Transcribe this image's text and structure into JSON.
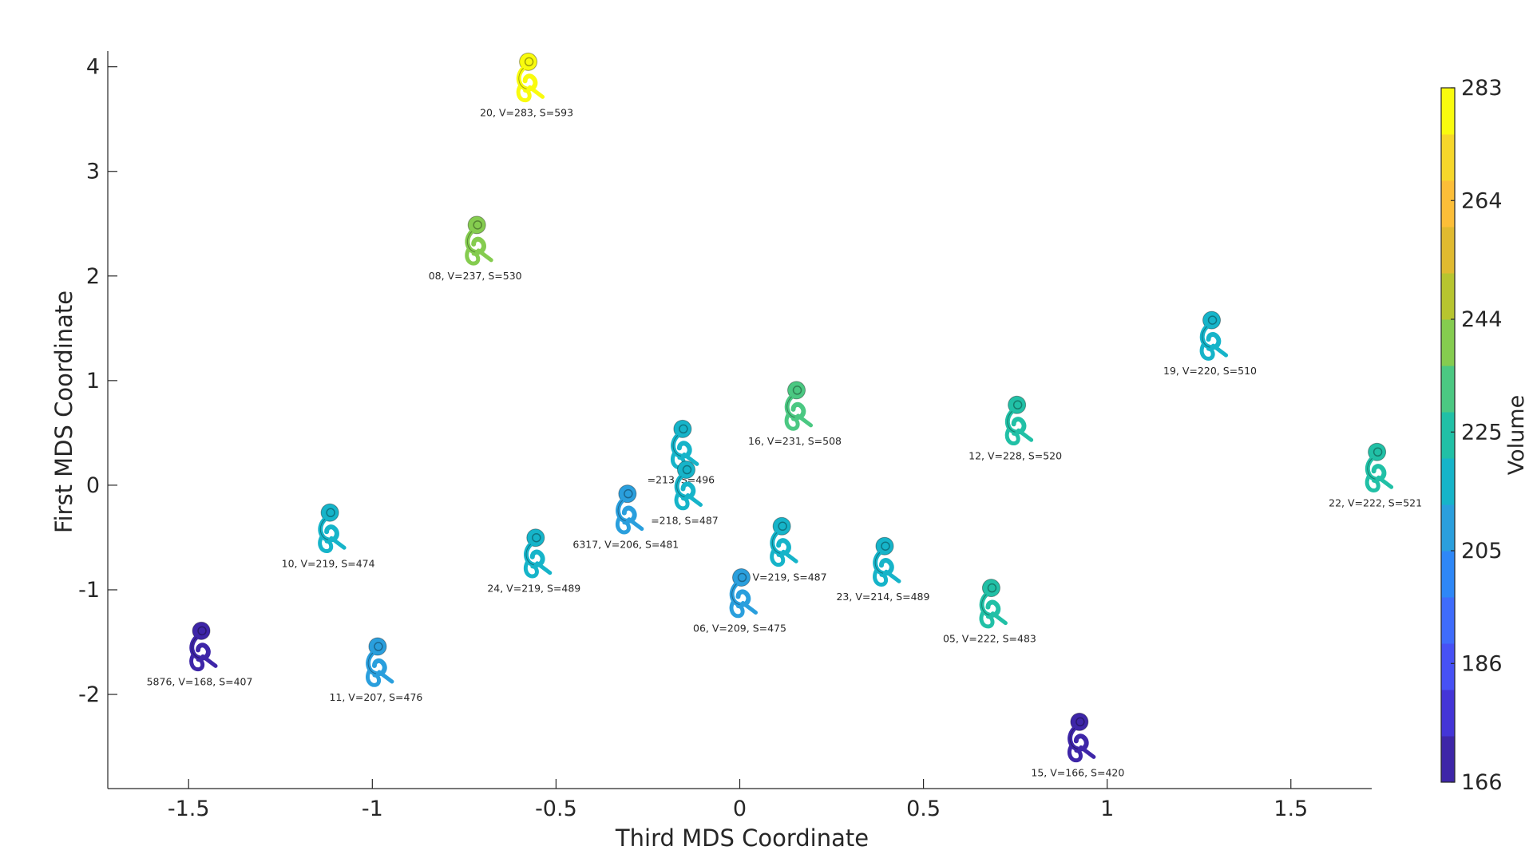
{
  "chart_data": {
    "type": "scatter",
    "title": "",
    "xlabel": "Third MDS Coordinate",
    "ylabel": "First MDS Coordinate",
    "xlim": [
      -1.72,
      1.72
    ],
    "ylim": [
      -2.9,
      4.15
    ],
    "x_ticks": [
      -1.5,
      -1,
      -0.5,
      0,
      0.5,
      1,
      1.5
    ],
    "x_tick_labels": [
      "-1.5",
      "-1",
      "-0.5",
      "0",
      "0.5",
      "1",
      "1.5"
    ],
    "y_ticks": [
      -2,
      -1,
      0,
      1,
      2,
      3,
      4
    ],
    "y_tick_labels": [
      "-2",
      "-1",
      "0",
      "1",
      "2",
      "3",
      "4"
    ],
    "grid": false,
    "marker": "inner-ear-shape",
    "colorbar": {
      "label": "Volume",
      "min": 166,
      "max": 283,
      "tick_values": [
        166,
        186,
        205,
        225,
        244,
        264,
        283
      ],
      "tick_labels": [
        "166",
        "186",
        "205",
        "225",
        "244",
        "264",
        "283"
      ],
      "colors": [
        "#3e26a8",
        "#4435d7",
        "#4751f5",
        "#3f6cfb",
        "#2e87f7",
        "#2a9fdd",
        "#16b4c9",
        "#21c0a6",
        "#4bc882",
        "#85cc4f",
        "#b7c52f",
        "#e0ba30",
        "#fcbe38",
        "#f6d72a",
        "#f9fb0e"
      ]
    },
    "points": [
      {
        "x": -0.58,
        "y": 3.88,
        "volume": 283,
        "label": "20, V=283, S=593"
      },
      {
        "x": -0.72,
        "y": 2.32,
        "volume": 237,
        "label": "08, V=237, S=530"
      },
      {
        "x": 1.28,
        "y": 1.41,
        "volume": 220,
        "label": "19, V=220, S=510"
      },
      {
        "x": 0.15,
        "y": 0.74,
        "volume": 231,
        "label": "16, V=231, S=508"
      },
      {
        "x": 0.75,
        "y": 0.6,
        "volume": 228,
        "label": "12, V=228, S=520"
      },
      {
        "x": -0.16,
        "y": 0.37,
        "volume": 213,
        "label": "=213, S=496"
      },
      {
        "x": 1.73,
        "y": 0.15,
        "volume": 222,
        "label": "22, V=222, S=521"
      },
      {
        "x": -0.15,
        "y": -0.02,
        "volume": 218,
        "label": "=218, S=487"
      },
      {
        "x": -0.31,
        "y": -0.25,
        "volume": 206,
        "label": "6317, V=206, S=481"
      },
      {
        "x": -1.12,
        "y": -0.43,
        "volume": 219,
        "label": "10, V=219, S=474"
      },
      {
        "x": 0.11,
        "y": -0.56,
        "volume": 219,
        "label": "09, V=219, S=487"
      },
      {
        "x": -0.56,
        "y": -0.67,
        "volume": 219,
        "label": "24, V=219, S=489"
      },
      {
        "x": 0.39,
        "y": -0.75,
        "volume": 214,
        "label": "23, V=214, S=489"
      },
      {
        "x": 0.0,
        "y": -1.05,
        "volume": 209,
        "label": "06, V=209, S=475"
      },
      {
        "x": 0.68,
        "y": -1.15,
        "volume": 222,
        "label": "05, V=222, S=483"
      },
      {
        "x": -1.47,
        "y": -1.56,
        "volume": 168,
        "label": "5876, V=168, S=407"
      },
      {
        "x": -0.99,
        "y": -1.71,
        "volume": 207,
        "label": "11, V=207, S=476"
      },
      {
        "x": 0.92,
        "y": -2.43,
        "volume": 166,
        "label": "15, V=166, S=420"
      }
    ]
  }
}
